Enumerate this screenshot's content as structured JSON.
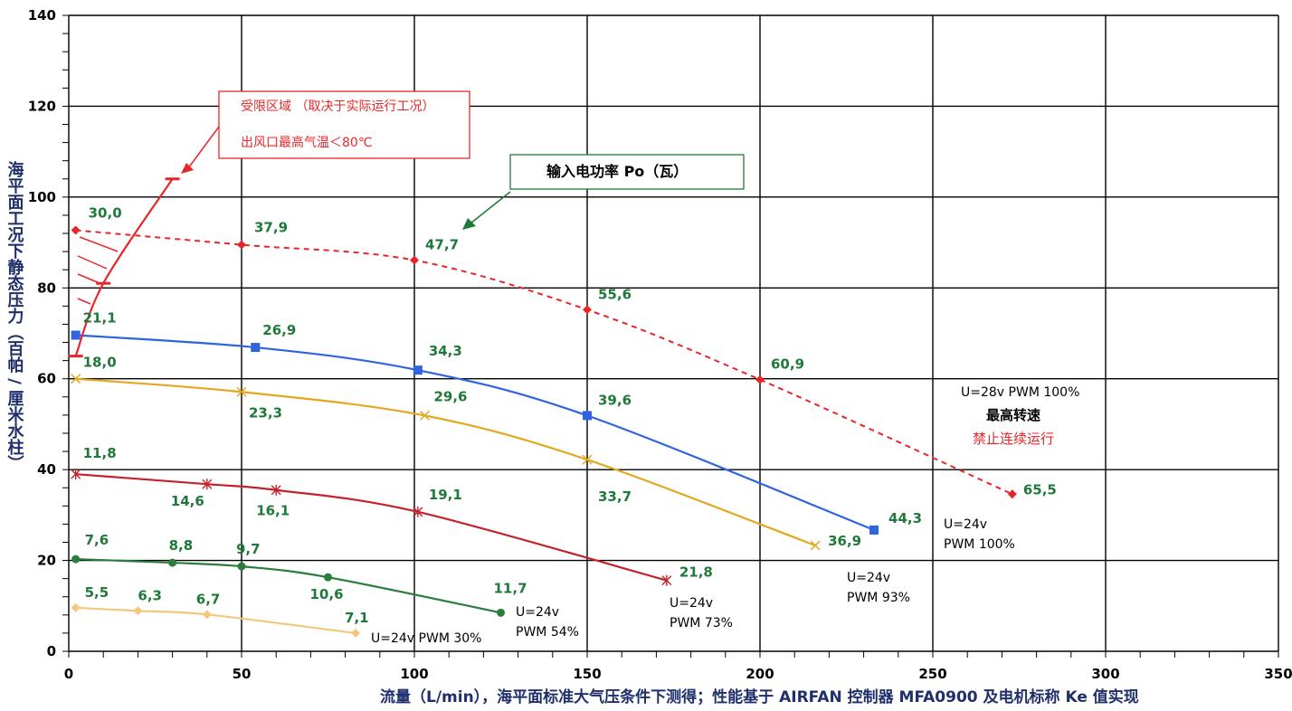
{
  "chart_data": {
    "type": "line",
    "xlabel": "流量（L/min），海平面标准大气压条件下测得；性能基于 AIRFAN 控制器 MFA0900 及电机标称 Ke 值实现",
    "ylabel": "海平面工况下静态压力（百帕 / 厘米水柱）",
    "xlim": [
      0,
      350
    ],
    "ylim": [
      0,
      140
    ],
    "x_ticks": [
      0,
      50,
      100,
      150,
      200,
      250,
      300,
      350
    ],
    "y_ticks": [
      0,
      20,
      40,
      60,
      80,
      100,
      120,
      140
    ],
    "grid": true,
    "series": [
      {
        "name": "U=28v PWM 100%",
        "color": "#e8262a",
        "dashed": true,
        "marker": "diamond",
        "points": [
          [
            2,
            92.7
          ],
          [
            50,
            89.5
          ],
          [
            100,
            86.1
          ],
          [
            150,
            75.2
          ],
          [
            200,
            59.8
          ],
          [
            273,
            34.6
          ]
        ],
        "power": [
          "30,0",
          "37,9",
          "47,7",
          "55,6",
          "60,9",
          "65,5"
        ]
      },
      {
        "name": "U=24v PWM 100%",
        "color": "#2f63e0",
        "marker": "square",
        "points": [
          [
            2,
            69.6
          ],
          [
            54,
            66.9
          ],
          [
            101,
            61.9
          ],
          [
            150,
            51.9
          ],
          [
            233,
            26.7
          ]
        ],
        "power": [
          "21,1",
          "26,9",
          "34,3",
          "39,6",
          "44,3"
        ]
      },
      {
        "name": "U=24v PWM 93%",
        "color": "#e3a81f",
        "marker": "x",
        "points": [
          [
            2,
            60
          ],
          [
            50,
            57.1
          ],
          [
            103,
            51.9
          ],
          [
            150,
            42.2
          ],
          [
            216,
            23.3
          ]
        ],
        "power": [
          "18,0",
          "23,3",
          "29,6",
          "33,7",
          "36,9"
        ]
      },
      {
        "name": "U=24v PWM 73%",
        "color": "#c4222a",
        "marker": "asterisk",
        "points": [
          [
            2,
            39
          ],
          [
            40,
            36.8
          ],
          [
            60,
            35.5
          ],
          [
            101,
            30.7
          ],
          [
            173,
            15.6
          ]
        ],
        "power": [
          "11,8",
          "14,6",
          "16,1",
          "19,1",
          "21,8"
        ]
      },
      {
        "name": "U=24v PWM 54%",
        "color": "#2a7d3b",
        "marker": "circle",
        "points": [
          [
            2,
            20.3
          ],
          [
            30,
            19.5
          ],
          [
            50,
            18.7
          ],
          [
            75,
            16.3
          ],
          [
            125,
            8.5
          ]
        ],
        "power": [
          "7,6",
          "8,8",
          "9,7",
          "10,6",
          "11,7"
        ]
      },
      {
        "name": "U=24v PWM 30%",
        "color": "#f5c77a",
        "marker": "diamond",
        "points": [
          [
            2,
            9.6
          ],
          [
            20,
            8.9
          ],
          [
            40,
            8.1
          ],
          [
            83,
            4
          ]
        ],
        "power": [
          "5,5",
          "6,3",
          "6,7",
          "7,1"
        ]
      },
      {
        "name": "limit",
        "color": "#e8262a",
        "marker": "dash",
        "points": [
          [
            2,
            65
          ],
          [
            10,
            81
          ],
          [
            30,
            104
          ]
        ]
      }
    ]
  },
  "annotations": {
    "limit_line1": "受限区域 （取决于实际运行工况）",
    "limit_line2": "出风口最高气温＜80℃",
    "power_box": "输入电功率 Po（瓦）",
    "max_speed_line1": "U=28v  PWM 100%",
    "max_speed_line2": "最高转速",
    "max_speed_line3": "禁止连续运行",
    "pwm100_line1": "U=24v",
    "pwm100_line2": "PWM 100%",
    "pwm93_line1": "U=24v",
    "pwm93_line2": "PWM 93%",
    "pwm73_line1": "U=24v",
    "pwm73_line2": "PWM 73%",
    "pwm54_line1": "U=24v",
    "pwm54_line2": "PWM 54%",
    "pwm30": "U=24v PWM 30%"
  },
  "colors": {
    "grid": "#000000",
    "power_label": "#1f7a3a",
    "annotation_red": "#e8262a",
    "annotation_green": "#1f7a3a",
    "axis_title": "#1f2f6b"
  }
}
